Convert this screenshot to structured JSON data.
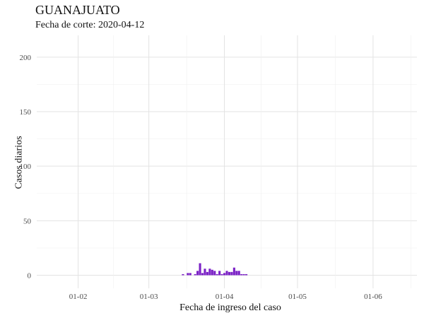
{
  "chart_data": {
    "type": "bar",
    "title": "GUANAJUATO",
    "subtitle": "Fecha de corte: 2020-04-12",
    "xlabel": "Fecha de ingreso del caso",
    "ylabel": "Casos diarios",
    "x_ticks": [
      "01-02",
      "01-03",
      "01-04",
      "01-05",
      "01-06"
    ],
    "y_ticks": [
      0,
      50,
      100,
      150,
      200
    ],
    "ylim": [
      0,
      220
    ],
    "grid": true,
    "bar_color": "#7b22c6",
    "x": [
      "2020-03-15",
      "2020-03-17",
      "2020-03-18",
      "2020-03-20",
      "2020-03-21",
      "2020-03-22",
      "2020-03-23",
      "2020-03-24",
      "2020-03-25",
      "2020-03-26",
      "2020-03-27",
      "2020-03-28",
      "2020-03-29",
      "2020-03-30",
      "2020-03-31",
      "2020-04-01",
      "2020-04-02",
      "2020-04-03",
      "2020-04-04",
      "2020-04-05",
      "2020-04-06",
      "2020-04-07",
      "2020-04-08",
      "2020-04-09",
      "2020-04-10"
    ],
    "values": [
      1,
      2,
      2,
      1,
      4,
      11,
      2,
      6,
      3,
      6,
      5,
      4,
      1,
      4,
      1,
      2,
      4,
      3,
      3,
      7,
      4,
      4,
      1,
      1,
      1
    ]
  }
}
